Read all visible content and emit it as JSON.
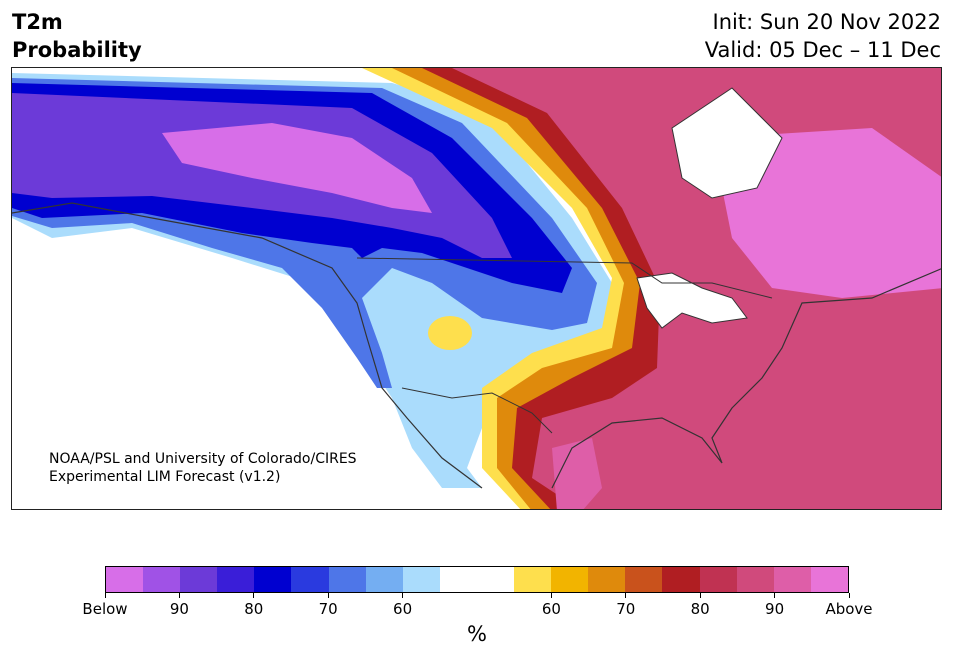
{
  "header": {
    "variable": "T2m",
    "product": "Probability",
    "init": "Init: Sun 20 Nov 2022",
    "valid": "Valid: 05 Dec – 11 Dec"
  },
  "map": {
    "credit_line1": "NOAA/PSL and University of Colorado/CIRES",
    "credit_line2": "Experimental LIM Forecast (v1.2)"
  },
  "colors": {
    "below": [
      "#d76ee8",
      "#a052e6",
      "#6c3ad8",
      "#3a1ed8",
      "#0000d0",
      "#2a3adf",
      "#4e76e8",
      "#74aef2",
      "#aadcfc"
    ],
    "neutral": "#ffffff",
    "above": [
      "#fedf4d",
      "#f2b400",
      "#df8a0c",
      "#c9521c",
      "#b01e22",
      "#c03252",
      "#d04a7c",
      "#de5ea8",
      "#e874d8"
    ]
  },
  "colorbar": {
    "segments": [
      "#d76ee8",
      "#a052e6",
      "#6c3ad8",
      "#3a1ed8",
      "#0000d0",
      "#2a3adf",
      "#4e76e8",
      "#74aef2",
      "#aadcfc",
      "#ffffff",
      "#ffffff",
      "#fedf4d",
      "#f2b400",
      "#df8a0c",
      "#c9521c",
      "#b01e22",
      "#c03252",
      "#d04a7c",
      "#de5ea8",
      "#e874d8"
    ],
    "tick_labels": [
      "Below",
      "90",
      "80",
      "70",
      "60",
      "60",
      "70",
      "80",
      "90",
      "Above"
    ],
    "unit": "%"
  }
}
